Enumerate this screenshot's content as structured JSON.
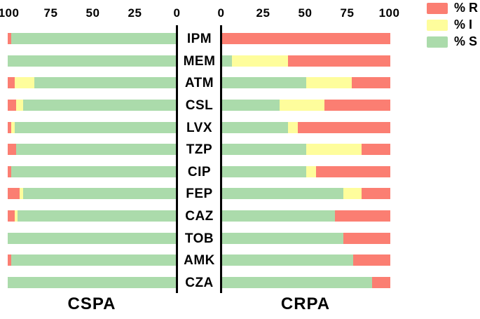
{
  "chart_data": {
    "type": "bar",
    "orientation": "horizontal",
    "stacked": true,
    "grid": false,
    "xlim": [
      0,
      100
    ],
    "categories": [
      "IPM",
      "MEM",
      "ATM",
      "CSL",
      "LVX",
      "TZP",
      "CIP",
      "FEP",
      "CAZ",
      "TOB",
      "AMK",
      "CZA"
    ],
    "legend_position": "top-right",
    "legend": [
      {
        "label": "% R",
        "color": "#FB7E72"
      },
      {
        "label": "% I",
        "color": "#FEFD9C"
      },
      {
        "label": "% S",
        "color": "#ABDBAB"
      }
    ],
    "panels": [
      {
        "name": "CSPA",
        "axis_ticks": [
          100,
          75,
          50,
          25,
          0
        ],
        "axis_reversed": true,
        "series": [
          {
            "name": "% S",
            "color": "#ABDBAB",
            "values": [
              98,
              100,
              84,
              91,
              96,
              95,
              98,
              91,
              94,
              100,
              98,
              100
            ]
          },
          {
            "name": "% I",
            "color": "#FEFD9C",
            "values": [
              0,
              0,
              12,
              4,
              2,
              0,
              0,
              2,
              2,
              0,
              0,
              0
            ]
          },
          {
            "name": "% R",
            "color": "#FB7E72",
            "values": [
              2,
              0,
              4,
              5,
              2,
              5,
              2,
              7,
              4,
              0,
              2,
              0
            ]
          }
        ]
      },
      {
        "name": "CRPA",
        "axis_ticks": [
          0,
          25,
          50,
          75,
          100
        ],
        "axis_reversed": false,
        "series": [
          {
            "name": "% S",
            "color": "#ABDBAB",
            "values": [
              0,
              6,
              50,
              34,
              39,
              50,
              50,
              72,
              67,
              72,
              78,
              89
            ]
          },
          {
            "name": "% I",
            "color": "#FEFD9C",
            "values": [
              0,
              33,
              27,
              27,
              6,
              33,
              6,
              11,
              0,
              0,
              0,
              0
            ]
          },
          {
            "name": "% R",
            "color": "#FB7E72",
            "values": [
              100,
              61,
              23,
              39,
              55,
              17,
              44,
              17,
              33,
              28,
              22,
              11
            ]
          }
        ]
      }
    ]
  }
}
